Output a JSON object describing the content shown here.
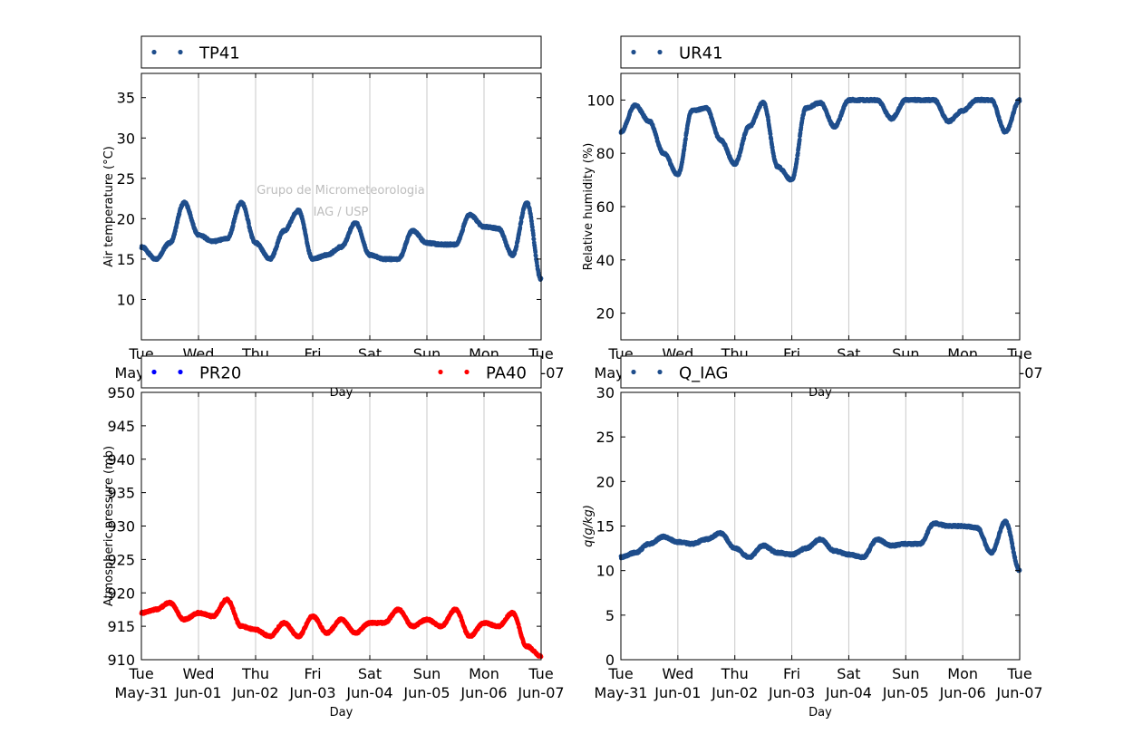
{
  "figure": {
    "watermark": [
      "Grupo de Micrometeorologia",
      "IAG / USP"
    ]
  },
  "chart_data": [
    {
      "type": "scatter",
      "xlabel": "Day",
      "ylabel": "Air temperature (°C)",
      "ylim": [
        5,
        38
      ],
      "yticks": [
        10,
        15,
        20,
        25,
        30,
        35
      ],
      "grid": "vertical",
      "legend_placement": "top",
      "x": [
        "May-31 00:00",
        "May-31 06:00",
        "May-31 12:00",
        "May-31 18:00",
        "Jun-01 00:00",
        "Jun-01 06:00",
        "Jun-01 12:00",
        "Jun-01 18:00",
        "Jun-02 00:00",
        "Jun-02 06:00",
        "Jun-02 12:00",
        "Jun-02 18:00",
        "Jun-03 00:00",
        "Jun-03 06:00",
        "Jun-03 12:00",
        "Jun-03 18:00",
        "Jun-04 00:00",
        "Jun-04 06:00",
        "Jun-04 12:00",
        "Jun-04 18:00",
        "Jun-05 00:00",
        "Jun-05 06:00",
        "Jun-05 12:00",
        "Jun-05 18:00",
        "Jun-06 00:00",
        "Jun-06 06:00",
        "Jun-06 12:00",
        "Jun-06 18:00",
        "Jun-07 00:00"
      ],
      "series": [
        {
          "name": "TP41",
          "color": "#1f4e8c",
          "values": [
            16.5,
            15.0,
            17.0,
            22.0,
            18.0,
            17.2,
            17.5,
            22.0,
            17.0,
            15.0,
            18.5,
            21.0,
            15.0,
            15.5,
            16.5,
            19.5,
            15.5,
            15.0,
            15.0,
            18.5,
            17.0,
            16.8,
            16.8,
            20.5,
            19.0,
            18.8,
            15.5,
            22.0,
            12.5
          ]
        }
      ]
    },
    {
      "type": "scatter",
      "xlabel": "Day",
      "ylabel": "Relative humidity (%)",
      "ylim": [
        10,
        110
      ],
      "yticks": [
        20,
        40,
        60,
        80,
        100
      ],
      "grid": "vertical",
      "legend_placement": "top",
      "x": [
        "May-31 00:00",
        "May-31 06:00",
        "May-31 12:00",
        "May-31 18:00",
        "Jun-01 00:00",
        "Jun-01 06:00",
        "Jun-01 12:00",
        "Jun-01 18:00",
        "Jun-02 00:00",
        "Jun-02 06:00",
        "Jun-02 12:00",
        "Jun-02 18:00",
        "Jun-03 00:00",
        "Jun-03 06:00",
        "Jun-03 12:00",
        "Jun-03 18:00",
        "Jun-04 00:00",
        "Jun-04 06:00",
        "Jun-04 12:00",
        "Jun-04 18:00",
        "Jun-05 00:00",
        "Jun-05 06:00",
        "Jun-05 12:00",
        "Jun-05 18:00",
        "Jun-06 00:00",
        "Jun-06 06:00",
        "Jun-06 12:00",
        "Jun-06 18:00",
        "Jun-07 00:00"
      ],
      "series": [
        {
          "name": "UR41",
          "color": "#1f4e8c",
          "values": [
            88,
            98,
            92,
            80,
            72,
            96,
            97,
            85,
            76,
            90,
            99,
            75,
            70,
            97,
            99,
            90,
            100,
            100,
            100,
            93,
            100,
            100,
            100,
            92,
            96,
            100,
            100,
            88,
            100
          ]
        }
      ]
    },
    {
      "type": "scatter",
      "xlabel": "Day",
      "ylabel": "Atmospheric pressure (mb)",
      "ylim": [
        910,
        950
      ],
      "yticks": [
        910,
        915,
        920,
        925,
        930,
        935,
        940,
        945,
        950
      ],
      "grid": "vertical",
      "legend_placement": "top",
      "x": [
        "May-31 00:00",
        "May-31 06:00",
        "May-31 12:00",
        "May-31 18:00",
        "Jun-01 00:00",
        "Jun-01 06:00",
        "Jun-01 12:00",
        "Jun-01 18:00",
        "Jun-02 00:00",
        "Jun-02 06:00",
        "Jun-02 12:00",
        "Jun-02 18:00",
        "Jun-03 00:00",
        "Jun-03 06:00",
        "Jun-03 12:00",
        "Jun-03 18:00",
        "Jun-04 00:00",
        "Jun-04 06:00",
        "Jun-04 12:00",
        "Jun-04 18:00",
        "Jun-05 00:00",
        "Jun-05 06:00",
        "Jun-05 12:00",
        "Jun-05 18:00",
        "Jun-06 00:00",
        "Jun-06 06:00",
        "Jun-06 12:00",
        "Jun-06 18:00",
        "Jun-07 00:00"
      ],
      "series": [
        {
          "name": "PR20",
          "color": "#0000ff",
          "values": []
        },
        {
          "name": "PA40",
          "color": "#ff0000",
          "values": [
            917.0,
            917.5,
            918.5,
            916.0,
            917.0,
            916.5,
            919.0,
            915.0,
            914.5,
            913.5,
            915.5,
            913.5,
            916.5,
            914.0,
            916.0,
            914.0,
            915.5,
            915.5,
            917.5,
            915.0,
            916.0,
            915.0,
            917.5,
            913.5,
            915.5,
            915.0,
            917.0,
            912.0,
            910.5
          ]
        }
      ]
    },
    {
      "type": "scatter",
      "xlabel": "Day",
      "ylabel": "q(g/kg)",
      "ylim": [
        0,
        30
      ],
      "yticks": [
        0,
        5,
        10,
        15,
        20,
        25,
        30
      ],
      "grid": "vertical",
      "legend_placement": "top",
      "x": [
        "May-31 00:00",
        "May-31 06:00",
        "May-31 12:00",
        "May-31 18:00",
        "Jun-01 00:00",
        "Jun-01 06:00",
        "Jun-01 12:00",
        "Jun-01 18:00",
        "Jun-02 00:00",
        "Jun-02 06:00",
        "Jun-02 12:00",
        "Jun-02 18:00",
        "Jun-03 00:00",
        "Jun-03 06:00",
        "Jun-03 12:00",
        "Jun-03 18:00",
        "Jun-04 00:00",
        "Jun-04 06:00",
        "Jun-04 12:00",
        "Jun-04 18:00",
        "Jun-05 00:00",
        "Jun-05 06:00",
        "Jun-05 12:00",
        "Jun-05 18:00",
        "Jun-06 00:00",
        "Jun-06 06:00",
        "Jun-06 12:00",
        "Jun-06 18:00",
        "Jun-07 00:00"
      ],
      "series": [
        {
          "name": "Q_IAG",
          "color": "#1f4e8c",
          "values": [
            11.5,
            12.0,
            13.0,
            13.8,
            13.2,
            13.0,
            13.5,
            14.2,
            12.5,
            11.5,
            12.8,
            12.0,
            11.8,
            12.5,
            13.5,
            12.2,
            11.8,
            11.5,
            13.5,
            12.8,
            13.0,
            13.0,
            15.3,
            15.0,
            15.0,
            14.8,
            12.0,
            15.5,
            10.0
          ]
        }
      ]
    }
  ],
  "xticks": [
    {
      "day": "Tue",
      "date": "May-31"
    },
    {
      "day": "Wed",
      "date": "Jun-01"
    },
    {
      "day": "Thu",
      "date": "Jun-02"
    },
    {
      "day": "Fri",
      "date": "Jun-03"
    },
    {
      "day": "Sat",
      "date": "Jun-04"
    },
    {
      "day": "Sun",
      "date": "Jun-05"
    },
    {
      "day": "Mon",
      "date": "Jun-06"
    },
    {
      "day": "Tue",
      "date": "Jun-07"
    }
  ]
}
